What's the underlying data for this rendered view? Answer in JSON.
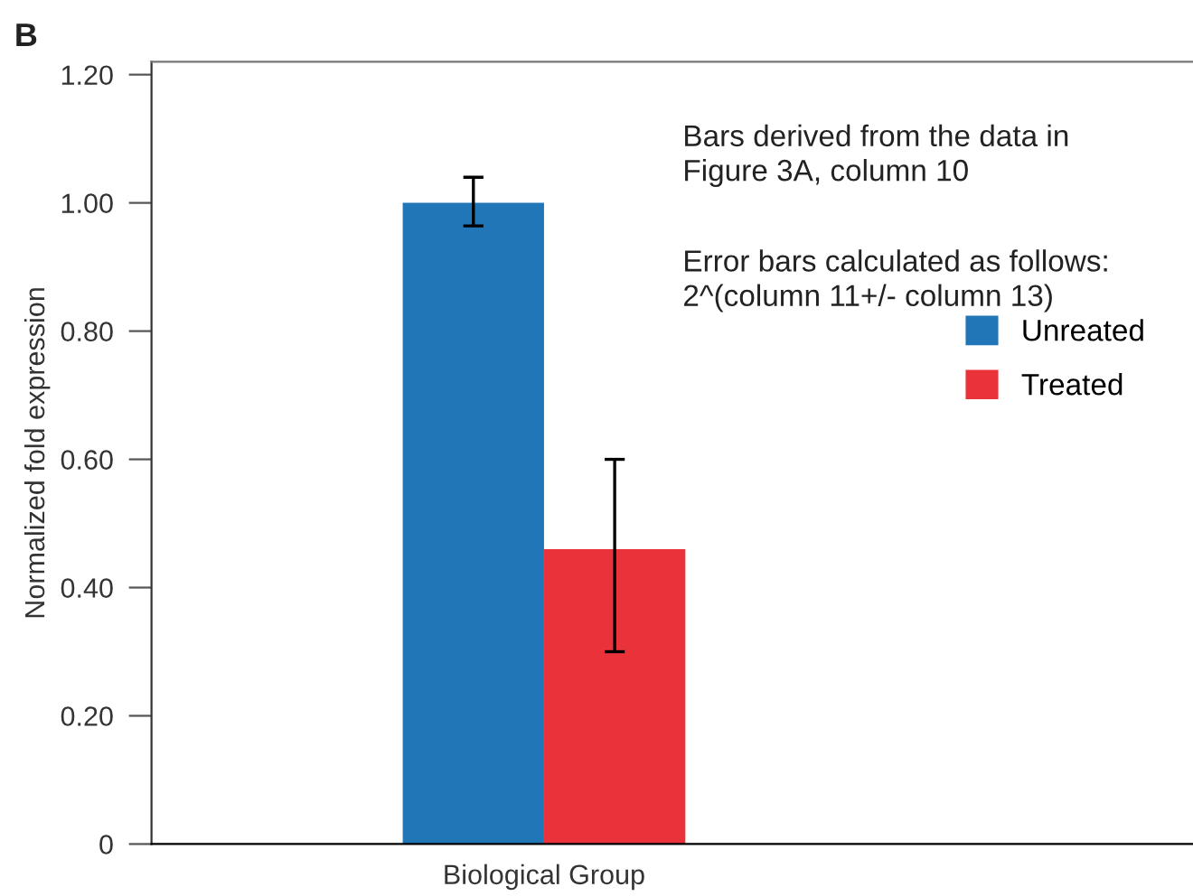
{
  "chart_data": {
    "type": "bar",
    "ylabel": "Normalized fold expression",
    "categories": [
      "Biological Group"
    ],
    "series": [
      {
        "name": "Unreated",
        "color": "#2176b8",
        "values": [
          1.0
        ],
        "errors": [
          [
            0.964,
            1.04
          ]
        ]
      },
      {
        "name": "Treated",
        "color": "#e93239",
        "values": [
          0.46
        ],
        "errors": [
          [
            0.3,
            0.6
          ]
        ]
      }
    ],
    "ylim": [
      0,
      1.22
    ],
    "yticks": [
      0,
      {
        "value": 0.2,
        "label": "0.20"
      },
      {
        "value": 0.4,
        "label": "0.40"
      },
      {
        "value": 0.6,
        "label": "0.60"
      },
      {
        "value": 0.8,
        "label": "0.80"
      },
      {
        "value": 1.0,
        "label": "1.00"
      },
      {
        "value": 1.2,
        "label": "1.20"
      }
    ],
    "grid": false,
    "legend": "right",
    "annotations": [
      "B",
      "Bars derived from the data in\nFigure 3A, column 10",
      "Error bars calculated as follows:\n2^(column 11+/- column 13)"
    ]
  }
}
